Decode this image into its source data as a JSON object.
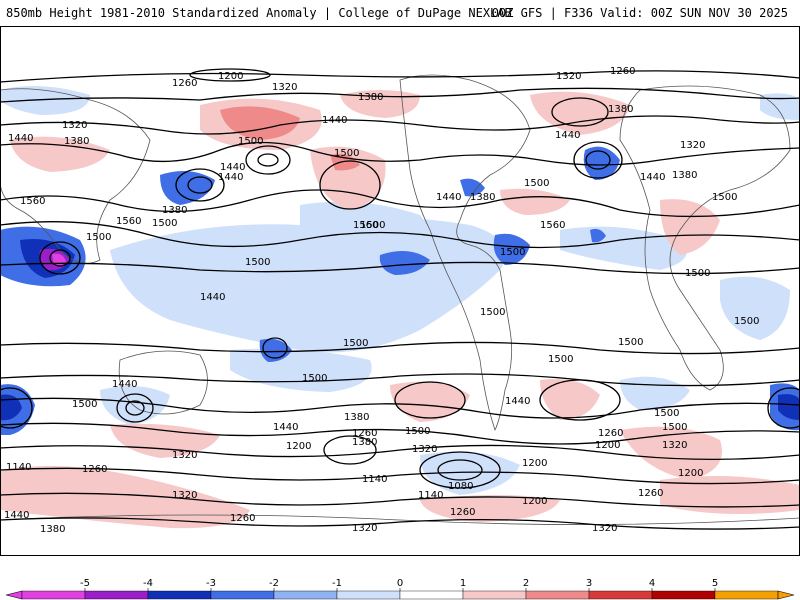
{
  "header": {
    "title_left": "850mb Height 1981-2010 Standardized Anomaly | College of DuPage NEXLAB",
    "title_right": "00Z GFS | F336 Valid: 00Z SUN NOV 30 2025"
  },
  "colorbar": {
    "ticks": [
      "-5",
      "-4",
      "-3",
      "-2",
      "-1",
      "0",
      "1",
      "2",
      "3",
      "4",
      "5"
    ],
    "colors": [
      "#e040e0",
      "#9b1fc9",
      "#1030b8",
      "#3f6ee6",
      "#8fb2f2",
      "#cfe0fb",
      "#ffffff",
      "#f7c8c8",
      "#ee8a8a",
      "#d83a3a",
      "#b00000",
      "#f3a000"
    ]
  },
  "contour_labels": [
    {
      "text": "1260",
      "id": "c1"
    },
    {
      "text": "1200",
      "id": "c2"
    },
    {
      "text": "1320",
      "id": "c3"
    },
    {
      "text": "1380",
      "id": "c4"
    },
    {
      "text": "1320",
      "id": "c5"
    },
    {
      "text": "1260",
      "id": "c6"
    },
    {
      "text": "1440",
      "id": "c7"
    },
    {
      "text": "1320",
      "id": "c8"
    },
    {
      "text": "1380",
      "id": "c9"
    },
    {
      "text": "1500",
      "id": "c10"
    },
    {
      "text": "1440",
      "id": "c11"
    },
    {
      "text": "1500",
      "id": "c12"
    },
    {
      "text": "1440",
      "id": "c13"
    },
    {
      "text": "1440",
      "id": "c14"
    },
    {
      "text": "1380",
      "id": "c15"
    },
    {
      "text": "1500",
      "id": "c16"
    },
    {
      "text": "1560",
      "id": "c17"
    },
    {
      "text": "1560",
      "id": "c18"
    },
    {
      "text": "1440",
      "id": "c19"
    },
    {
      "text": "1380",
      "id": "c20"
    },
    {
      "text": "1500",
      "id": "c21"
    },
    {
      "text": "1560",
      "id": "c22"
    },
    {
      "text": "1440",
      "id": "c23"
    },
    {
      "text": "1380",
      "id": "c24"
    },
    {
      "text": "1440",
      "id": "c25"
    },
    {
      "text": "1380",
      "id": "c26"
    },
    {
      "text": "1320",
      "id": "c27"
    },
    {
      "text": "1500",
      "id": "c28"
    },
    {
      "text": "1560",
      "id": "c29"
    },
    {
      "text": "1500",
      "id": "c30"
    },
    {
      "text": "1500",
      "id": "c31"
    },
    {
      "text": "1500",
      "id": "c32"
    },
    {
      "text": "1500",
      "id": "c33"
    },
    {
      "text": "1500",
      "id": "c34"
    },
    {
      "text": "1500",
      "id": "c35"
    },
    {
      "text": "1500",
      "id": "c36"
    },
    {
      "text": "1440",
      "id": "c37"
    },
    {
      "text": "1500",
      "id": "c38"
    },
    {
      "text": "1500",
      "id": "c39"
    },
    {
      "text": "1440",
      "id": "c40"
    },
    {
      "text": "1380",
      "id": "c41"
    },
    {
      "text": "1500",
      "id": "c42"
    },
    {
      "text": "1440",
      "id": "c43"
    },
    {
      "text": "1260",
      "id": "c44"
    },
    {
      "text": "1380",
      "id": "c45"
    },
    {
      "text": "1320",
      "id": "c46"
    },
    {
      "text": "1200",
      "id": "c47"
    },
    {
      "text": "1260",
      "id": "c48"
    },
    {
      "text": "1320",
      "id": "c49"
    },
    {
      "text": "1200",
      "id": "c50"
    },
    {
      "text": "1140",
      "id": "c51"
    },
    {
      "text": "1080",
      "id": "c52"
    },
    {
      "text": "1140",
      "id": "c53"
    },
    {
      "text": "1200",
      "id": "c54"
    },
    {
      "text": "1260",
      "id": "c55"
    },
    {
      "text": "1200",
      "id": "c56"
    },
    {
      "text": "1140",
      "id": "c57"
    },
    {
      "text": "1260",
      "id": "c58"
    },
    {
      "text": "1320",
      "id": "c59"
    },
    {
      "text": "1440",
      "id": "c60"
    },
    {
      "text": "1380",
      "id": "c61"
    },
    {
      "text": "1260",
      "id": "c62"
    },
    {
      "text": "1320",
      "id": "c63"
    },
    {
      "text": "1320",
      "id": "c64"
    },
    {
      "text": "1200",
      "id": "c65"
    },
    {
      "text": "1260",
      "id": "c66"
    },
    {
      "text": "1320",
      "id": "c67"
    },
    {
      "text": "1500",
      "id": "c68"
    },
    {
      "text": "1500",
      "id": "c69"
    },
    {
      "text": "1500",
      "id": "c70"
    },
    {
      "text": "1500",
      "id": "c71"
    },
    {
      "text": "1440",
      "id": "c72"
    },
    {
      "text": "1500",
      "id": "c73"
    }
  ]
}
